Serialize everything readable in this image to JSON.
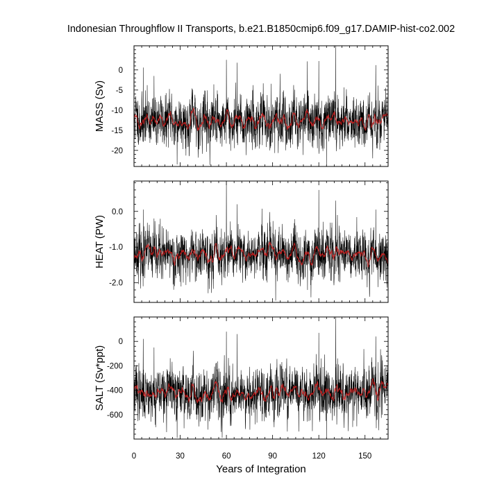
{
  "chart_data": {
    "type": "line",
    "title": "Indonesian Throughflow II Transports, b.e21.B1850cmip6.f09_g17.DAMIP-hist-co2.002",
    "xlabel": "Years of Integration",
    "xlim": [
      0,
      165
    ],
    "xticks": [
      0,
      30,
      60,
      90,
      120,
      150
    ],
    "grid": false,
    "colors": {
      "raw": "#000000",
      "smoothed": "#d62020"
    },
    "panels": [
      {
        "ylabel": "MASS (Sv)",
        "ylim": [
          -24,
          6
        ],
        "yticks": [
          0,
          -5,
          -10,
          -15,
          -20
        ],
        "ytick_labels": [
          "0",
          "-5",
          "-10",
          "-15",
          "-20"
        ],
        "mean": -12.6,
        "std": 3.0,
        "smooth_amplitude": 0.9,
        "seed": 11,
        "spikes": [
          [
            6,
            0.6
          ],
          [
            13,
            -1.5
          ],
          [
            28,
            -23.5
          ],
          [
            60,
            2.5
          ],
          [
            67,
            1.8
          ],
          [
            120,
            2.2
          ],
          [
            125,
            -24.0
          ],
          [
            131,
            6.0
          ],
          [
            157,
            1.2
          ]
        ]
      },
      {
        "ylabel": "HEAT (PW)",
        "ylim": [
          -2.55,
          0.85
        ],
        "yticks": [
          0.0,
          -1.0,
          -2.0
        ],
        "ytick_labels": [
          "0.0",
          "-1.0",
          "-2.0"
        ],
        "mean": -1.22,
        "std": 0.33,
        "smooth_amplitude": 0.1,
        "seed": 23,
        "spikes": [
          [
            6,
            0.05
          ],
          [
            13,
            -0.2
          ],
          [
            60,
            0.85
          ],
          [
            67,
            0.2
          ],
          [
            92,
            -2.5
          ],
          [
            120,
            0.6
          ],
          [
            131,
            0.3
          ],
          [
            157,
            0.05
          ]
        ]
      },
      {
        "ylabel": "SALT (Sv*ppt)",
        "ylim": [
          -800,
          200
        ],
        "yticks": [
          0,
          -200,
          -400,
          -600
        ],
        "ytick_labels": [
          "0",
          "-200",
          "-400",
          "-600"
        ],
        "mean": -420,
        "std": 100,
        "smooth_amplitude": 30,
        "seed": 37,
        "spikes": [
          [
            6,
            20
          ],
          [
            13,
            -50
          ],
          [
            28,
            -790
          ],
          [
            60,
            80
          ],
          [
            67,
            60
          ],
          [
            120,
            70
          ],
          [
            125,
            -800
          ],
          [
            131,
            200
          ],
          [
            157,
            40
          ]
        ]
      }
    ]
  }
}
